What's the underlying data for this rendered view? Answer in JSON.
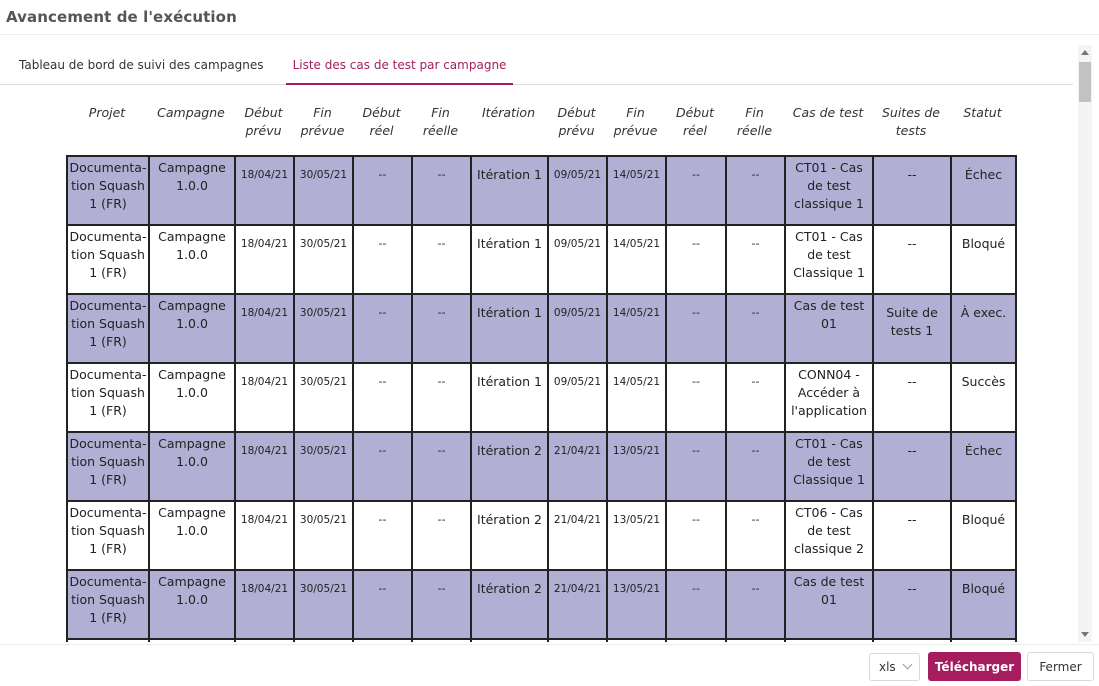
{
  "dialog": {
    "title": "Avancement de l'exécution"
  },
  "tabs": [
    {
      "label": "Tableau de bord de suivi des campagnes",
      "active": false
    },
    {
      "label": "Liste des cas de test par campagne",
      "active": true
    }
  ],
  "table": {
    "headers": [
      {
        "line1": "Projet",
        "line2": ""
      },
      {
        "line1": "Campagne",
        "line2": ""
      },
      {
        "line1": "Début",
        "line2": "prévu"
      },
      {
        "line1": "Fin",
        "line2": "prévue"
      },
      {
        "line1": "Début",
        "line2": "réel"
      },
      {
        "line1": "Fin",
        "line2": "réelle"
      },
      {
        "line1": "Itération",
        "line2": ""
      },
      {
        "line1": "Début",
        "line2": "prévu"
      },
      {
        "line1": "Fin",
        "line2": "prévue"
      },
      {
        "line1": "Début",
        "line2": "réel"
      },
      {
        "line1": "Fin",
        "line2": "réelle"
      },
      {
        "line1": "Cas de test",
        "line2": ""
      },
      {
        "line1": "Suites de",
        "line2": "tests"
      },
      {
        "line1": "Statut",
        "line2": ""
      }
    ],
    "rows": [
      {
        "shaded": true,
        "projet": [
          "Documenta-",
          "tion Squash",
          "1 (FR)"
        ],
        "campagne": [
          "Campagne",
          "1.0.0"
        ],
        "camp_debut_prevu": "18/04/21",
        "camp_fin_prevue": "30/05/21",
        "camp_debut_reel": "--",
        "camp_fin_reelle": "--",
        "iteration": "Itération 1",
        "iter_debut_prevu": "09/05/21",
        "iter_fin_prevue": "14/05/21",
        "iter_debut_reel": "--",
        "iter_fin_reelle": "--",
        "cas_de_test": [
          "CT01 - Cas",
          "de test",
          "classique 1"
        ],
        "suite": [
          "--"
        ],
        "statut": "Échec"
      },
      {
        "shaded": false,
        "projet": [
          "Documenta-",
          "tion Squash",
          "1 (FR)"
        ],
        "campagne": [
          "Campagne",
          "1.0.0"
        ],
        "camp_debut_prevu": "18/04/21",
        "camp_fin_prevue": "30/05/21",
        "camp_debut_reel": "--",
        "camp_fin_reelle": "--",
        "iteration": "Itération 1",
        "iter_debut_prevu": "09/05/21",
        "iter_fin_prevue": "14/05/21",
        "iter_debut_reel": "--",
        "iter_fin_reelle": "--",
        "cas_de_test": [
          "CT01 - Cas",
          "de test",
          "Classique 1"
        ],
        "suite": [
          "--"
        ],
        "statut": "Bloqué"
      },
      {
        "shaded": true,
        "projet": [
          "Documenta-",
          "tion Squash",
          "1 (FR)"
        ],
        "campagne": [
          "Campagne",
          "1.0.0"
        ],
        "camp_debut_prevu": "18/04/21",
        "camp_fin_prevue": "30/05/21",
        "camp_debut_reel": "--",
        "camp_fin_reelle": "--",
        "iteration": "Itération 1",
        "iter_debut_prevu": "09/05/21",
        "iter_fin_prevue": "14/05/21",
        "iter_debut_reel": "--",
        "iter_fin_reelle": "--",
        "cas_de_test": [
          "Cas de test",
          "01"
        ],
        "suite": [
          "Suite de",
          "tests 1"
        ],
        "statut": "À exec."
      },
      {
        "shaded": false,
        "projet": [
          "Documenta-",
          "tion Squash",
          "1 (FR)"
        ],
        "campagne": [
          "Campagne",
          "1.0.0"
        ],
        "camp_debut_prevu": "18/04/21",
        "camp_fin_prevue": "30/05/21",
        "camp_debut_reel": "--",
        "camp_fin_reelle": "--",
        "iteration": "Itération 1",
        "iter_debut_prevu": "09/05/21",
        "iter_fin_prevue": "14/05/21",
        "iter_debut_reel": "--",
        "iter_fin_reelle": "--",
        "cas_de_test": [
          "CONN04 -",
          "Accéder à",
          "l'application"
        ],
        "suite": [
          "--"
        ],
        "statut": "Succès"
      },
      {
        "shaded": true,
        "projet": [
          "Documenta-",
          "tion Squash",
          "1 (FR)"
        ],
        "campagne": [
          "Campagne",
          "1.0.0"
        ],
        "camp_debut_prevu": "18/04/21",
        "camp_fin_prevue": "30/05/21",
        "camp_debut_reel": "--",
        "camp_fin_reelle": "--",
        "iteration": "Itération 2",
        "iter_debut_prevu": "21/04/21",
        "iter_fin_prevue": "13/05/21",
        "iter_debut_reel": "--",
        "iter_fin_reelle": "--",
        "cas_de_test": [
          "CT01 - Cas",
          "de test",
          "Classique 1"
        ],
        "suite": [
          "--"
        ],
        "statut": "Échec"
      },
      {
        "shaded": false,
        "projet": [
          "Documenta-",
          "tion Squash",
          "1 (FR)"
        ],
        "campagne": [
          "Campagne",
          "1.0.0"
        ],
        "camp_debut_prevu": "18/04/21",
        "camp_fin_prevue": "30/05/21",
        "camp_debut_reel": "--",
        "camp_fin_reelle": "--",
        "iteration": "Itération 2",
        "iter_debut_prevu": "21/04/21",
        "iter_fin_prevue": "13/05/21",
        "iter_debut_reel": "--",
        "iter_fin_reelle": "--",
        "cas_de_test": [
          "CT06 - Cas",
          "de test",
          "classique 2"
        ],
        "suite": [
          "--"
        ],
        "statut": "Bloqué"
      },
      {
        "shaded": true,
        "projet": [
          "Documenta-",
          "tion Squash",
          "1 (FR)"
        ],
        "campagne": [
          "Campagne",
          "1.0.0"
        ],
        "camp_debut_prevu": "18/04/21",
        "camp_fin_prevue": "30/05/21",
        "camp_debut_reel": "--",
        "camp_fin_reelle": "--",
        "iteration": "Itération 2",
        "iter_debut_prevu": "21/04/21",
        "iter_fin_prevue": "13/05/21",
        "iter_debut_reel": "--",
        "iter_fin_reelle": "--",
        "cas_de_test": [
          "Cas de test",
          "01"
        ],
        "suite": [
          "--"
        ],
        "statut": "Bloqué"
      },
      {
        "shaded": false,
        "projet": [
          ""
        ],
        "campagne": [
          ""
        ],
        "camp_debut_prevu": "",
        "camp_fin_prevue": "",
        "camp_debut_reel": "",
        "camp_fin_reelle": "",
        "iteration": "",
        "iter_debut_prevu": "",
        "iter_fin_prevue": "",
        "iter_debut_reel": "",
        "iter_fin_reelle": "",
        "cas_de_test": [
          ""
        ],
        "suite": [
          ""
        ],
        "statut": ""
      }
    ]
  },
  "footer": {
    "format_value": "xls",
    "download_label": "Télécharger",
    "close_label": "Fermer"
  },
  "colors": {
    "accent": "#a51d5e",
    "row_shade": "#b1b0d4"
  }
}
